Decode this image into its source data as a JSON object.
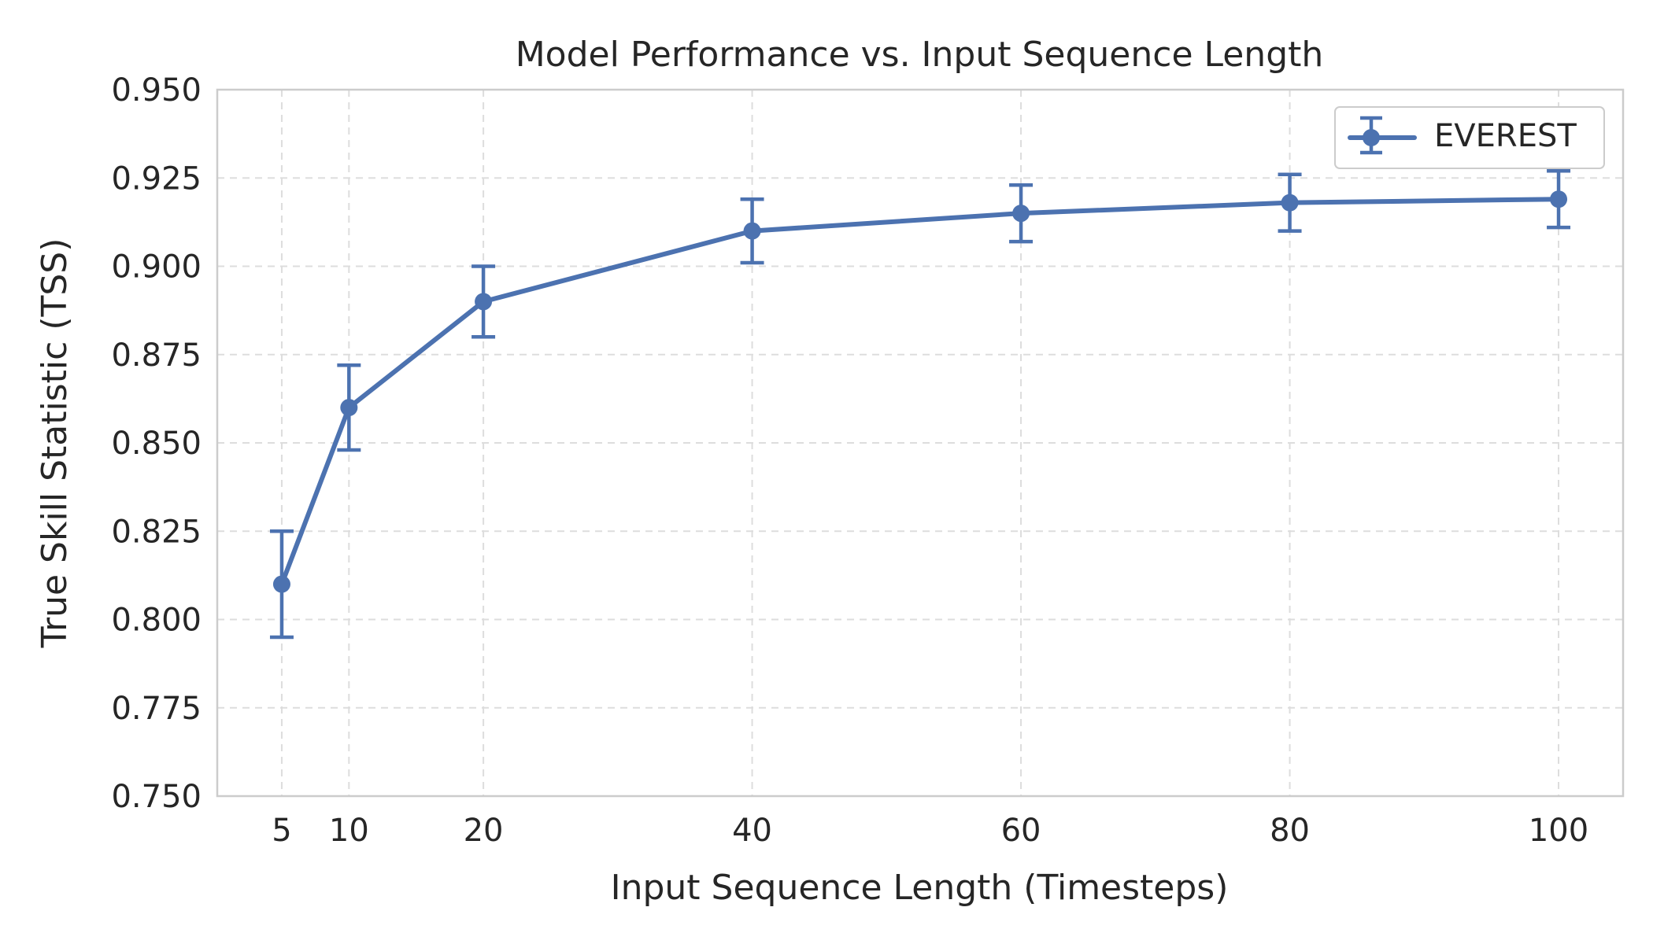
{
  "chart_data": {
    "type": "line",
    "title": "Model Performance vs. Input Sequence Length",
    "xlabel": "Input Sequence Length (Timesteps)",
    "ylabel": "True Skill Statistic (TSS)",
    "xlim": [
      0.2,
      104.8
    ],
    "ylim": [
      0.75,
      0.95
    ],
    "x_ticks": [
      5,
      10,
      20,
      40,
      60,
      80,
      100
    ],
    "x_tick_labels": [
      "5",
      "10",
      "20",
      "40",
      "60",
      "80",
      "100"
    ],
    "y_ticks": [
      0.75,
      0.775,
      0.8,
      0.825,
      0.85,
      0.875,
      0.9,
      0.925,
      0.95
    ],
    "y_tick_labels": [
      "0.750",
      "0.775",
      "0.800",
      "0.825",
      "0.850",
      "0.875",
      "0.900",
      "0.925",
      "0.950"
    ],
    "grid": true,
    "legend_position": "top-right",
    "series": [
      {
        "name": "EVEREST",
        "color": "#4c72b0",
        "marker": "circle",
        "error_bars": true,
        "points": [
          {
            "x": 5,
            "y": 0.81,
            "err_low": 0.795,
            "err_high": 0.825
          },
          {
            "x": 10,
            "y": 0.86,
            "err_low": 0.848,
            "err_high": 0.872
          },
          {
            "x": 20,
            "y": 0.89,
            "err_low": 0.88,
            "err_high": 0.9
          },
          {
            "x": 40,
            "y": 0.91,
            "err_low": 0.901,
            "err_high": 0.919
          },
          {
            "x": 60,
            "y": 0.915,
            "err_low": 0.907,
            "err_high": 0.923
          },
          {
            "x": 80,
            "y": 0.918,
            "err_low": 0.91,
            "err_high": 0.926
          },
          {
            "x": 100,
            "y": 0.919,
            "err_low": 0.911,
            "err_high": 0.927
          }
        ]
      }
    ]
  }
}
